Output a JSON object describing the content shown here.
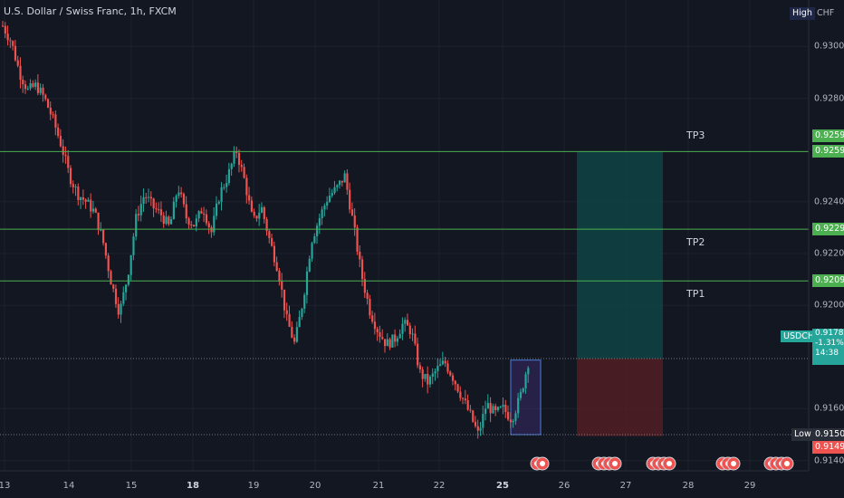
{
  "chart_title": "U.S. Dollar / Swiss Franc, 1h, FXCM",
  "currency_label": "CHF",
  "header_tag": "High",
  "chart_data": {
    "type": "candlestick",
    "symbol": "USDCHF",
    "y_ticks": [
      "0.93000",
      "0.92800",
      "0.92400",
      "0.92200",
      "0.92000",
      "0.91600",
      "0.91400"
    ],
    "x_ticks": [
      "13",
      "14",
      "15",
      "18",
      "19",
      "20",
      "21",
      "22",
      "25",
      "26",
      "27",
      "28",
      "29"
    ],
    "bold_x_ticks": [
      "18",
      "25"
    ],
    "ylim": [
      0.9136,
      0.9318
    ],
    "levels": [
      {
        "name": "TP3",
        "price": 0.92594,
        "tag": "0.92594"
      },
      {
        "name": "TP2",
        "price": 0.92294,
        "tag": "0.92294"
      },
      {
        "name": "TP1",
        "price": 0.92094,
        "tag": "0.92094"
      }
    ],
    "tp3_extra_tag": "0.92594",
    "low_label": "Low",
    "low_value": "0.91500",
    "stop_value": "0.91494",
    "current_price_tag": "0.91794",
    "current_box": {
      "label": "USDCHF",
      "price": "0.91782",
      "change": "-1.31%",
      "countdown": "14:38"
    },
    "entry": 0.91794,
    "target": 0.92594,
    "stop": 0.91494,
    "close_sample": [
      0.9308,
      0.9302,
      0.929,
      0.9283,
      0.9285,
      0.928,
      0.9272,
      0.9262,
      0.925,
      0.9243,
      0.924,
      0.9236,
      0.9225,
      0.9209,
      0.9197,
      0.9212,
      0.9234,
      0.9243,
      0.9238,
      0.9235,
      0.923,
      0.9246,
      0.9234,
      0.9231,
      0.9238,
      0.9228,
      0.9243,
      0.925,
      0.926,
      0.9248,
      0.9232,
      0.9238,
      0.9225,
      0.9214,
      0.9195,
      0.9185,
      0.9202,
      0.9225,
      0.9234,
      0.9242,
      0.9245,
      0.925,
      0.9232,
      0.9212,
      0.9198,
      0.919,
      0.9185,
      0.9187,
      0.9193,
      0.919,
      0.9174,
      0.917,
      0.9175,
      0.9178,
      0.9172,
      0.9165,
      0.9158,
      0.915,
      0.9162,
      0.9158,
      0.916,
      0.9156,
      0.9164,
      0.9178
    ]
  }
}
